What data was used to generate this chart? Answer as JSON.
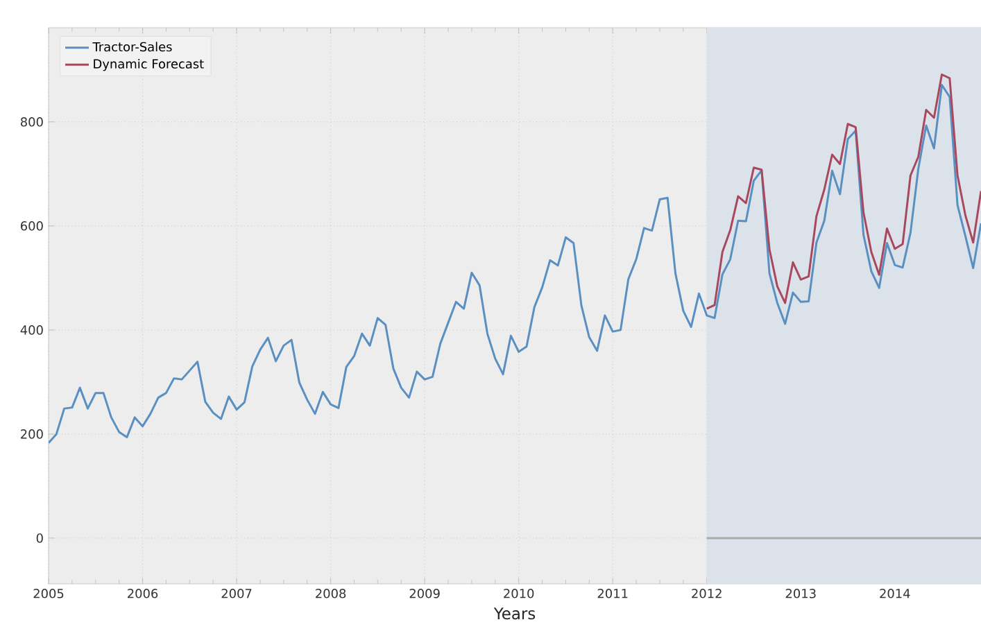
{
  "chart_data": {
    "type": "line",
    "xlabel": "Years",
    "x": [
      "2005-01",
      "2005-02",
      "2005-03",
      "2005-04",
      "2005-05",
      "2005-06",
      "2005-07",
      "2005-08",
      "2005-09",
      "2005-10",
      "2005-11",
      "2005-12",
      "2006-01",
      "2006-02",
      "2006-03",
      "2006-04",
      "2006-05",
      "2006-06",
      "2006-07",
      "2006-08",
      "2006-09",
      "2006-10",
      "2006-11",
      "2006-12",
      "2007-01",
      "2007-02",
      "2007-03",
      "2007-04",
      "2007-05",
      "2007-06",
      "2007-07",
      "2007-08",
      "2007-09",
      "2007-10",
      "2007-11",
      "2007-12",
      "2008-01",
      "2008-02",
      "2008-03",
      "2008-04",
      "2008-05",
      "2008-06",
      "2008-07",
      "2008-08",
      "2008-09",
      "2008-10",
      "2008-11",
      "2008-12",
      "2009-01",
      "2009-02",
      "2009-03",
      "2009-04",
      "2009-05",
      "2009-06",
      "2009-07",
      "2009-08",
      "2009-09",
      "2009-10",
      "2009-11",
      "2009-12",
      "2010-01",
      "2010-02",
      "2010-03",
      "2010-04",
      "2010-05",
      "2010-06",
      "2010-07",
      "2010-08",
      "2010-09",
      "2010-10",
      "2010-11",
      "2010-12",
      "2011-01",
      "2011-02",
      "2011-03",
      "2011-04",
      "2011-05",
      "2011-06",
      "2011-07",
      "2011-08",
      "2011-09",
      "2011-10",
      "2011-11",
      "2011-12",
      "2012-01",
      "2012-02",
      "2012-03",
      "2012-04",
      "2012-05",
      "2012-06",
      "2012-07",
      "2012-08",
      "2012-09",
      "2012-10",
      "2012-11",
      "2012-12",
      "2013-01",
      "2013-02",
      "2013-03",
      "2013-04",
      "2013-05",
      "2013-06",
      "2013-07",
      "2013-08",
      "2013-09",
      "2013-10",
      "2013-11",
      "2013-12",
      "2014-01",
      "2014-02",
      "2014-03",
      "2014-04",
      "2014-05",
      "2014-06",
      "2014-07",
      "2014-08",
      "2014-09",
      "2014-10",
      "2014-11",
      "2014-12"
    ],
    "series": [
      {
        "name": "Tractor-Sales",
        "color": "#5a8fc2",
        "values": [
          183,
          200,
          249,
          251,
          289,
          249,
          279,
          279,
          232,
          204,
          194,
          232,
          215,
          239,
          270,
          279,
          307,
          305,
          322,
          339,
          262,
          241,
          229,
          272,
          247,
          261,
          330,
          362,
          385,
          340,
          370,
          381,
          299,
          266,
          239,
          281,
          257,
          250,
          329,
          350,
          393,
          370,
          423,
          410,
          326,
          289,
          270,
          320,
          305,
          310,
          374,
          414,
          454,
          441,
          510,
          486,
          393,
          345,
          315,
          389,
          358,
          368,
          444,
          482,
          534,
          524,
          578,
          567,
          447,
          386,
          360,
          428,
          397,
          400,
          498,
          536,
          596,
          591,
          651,
          654,
          509,
          437,
          406,
          470,
          428,
          423,
          507,
          536,
          610,
          609,
          687,
          707,
          509,
          452,
          412,
          472,
          454,
          455,
          568,
          610,
          706,
          661,
          767,
          783,
          583,
          513,
          481,
          567,
          525,
          520,
          587,
          710,
          793,
          749,
          871,
          848,
          640,
          581,
          519,
          605
        ]
      },
      {
        "name": "Dynamic Forecast",
        "color": "#a8485e",
        "x": [
          "2012-01",
          "2012-02",
          "2012-03",
          "2012-04",
          "2012-05",
          "2012-06",
          "2012-07",
          "2012-08",
          "2012-09",
          "2012-10",
          "2012-11",
          "2012-12",
          "2013-01",
          "2013-02",
          "2013-03",
          "2013-04",
          "2013-05",
          "2013-06",
          "2013-07",
          "2013-08",
          "2013-09",
          "2013-10",
          "2013-11",
          "2013-12",
          "2014-01",
          "2014-02",
          "2014-03",
          "2014-04",
          "2014-05",
          "2014-06",
          "2014-07",
          "2014-08",
          "2014-09",
          "2014-10",
          "2014-11",
          "2014-12"
        ],
        "values": [
          441,
          448,
          550,
          592,
          657,
          644,
          712,
          708,
          555,
          484,
          452,
          530,
          497,
          503,
          619,
          670,
          737,
          719,
          796,
          790,
          626,
          550,
          506,
          595,
          556,
          565,
          697,
          733,
          823,
          808,
          891,
          884,
          697,
          621,
          568,
          667
        ]
      },
      {
        "color": "#aaaaaa",
        "x": [
          "2012-01",
          "2014-12"
        ],
        "values": [
          0,
          0
        ]
      }
    ],
    "xlim": [
      "2005-01",
      "2014-12"
    ],
    "ylim": [
      -88,
      981
    ],
    "xticks": [
      "2005",
      "2006",
      "2007",
      "2008",
      "2009",
      "2010",
      "2011",
      "2012",
      "2013",
      "2014"
    ],
    "yticks": [
      0,
      200,
      400,
      600,
      800
    ],
    "bands": [
      {
        "axis": "x",
        "from": "2012-01",
        "to": "2014-12",
        "color": "#dce2ea"
      }
    ],
    "grid": true,
    "legend": "top left"
  }
}
